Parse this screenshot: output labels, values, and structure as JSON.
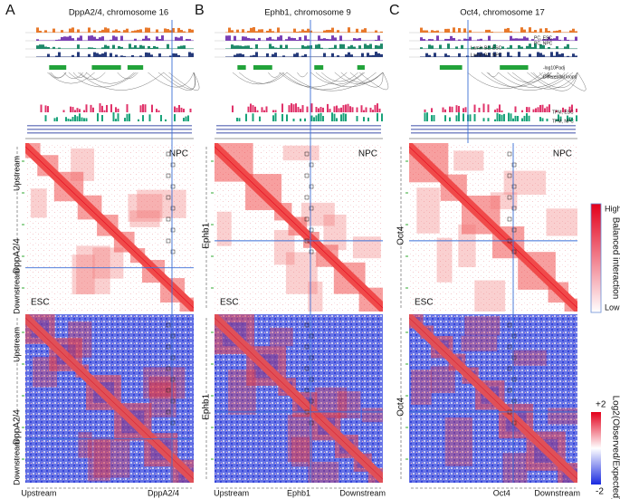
{
  "panels": [
    {
      "letter": "A",
      "title": "DppA2/4, chromosome 16",
      "top_label": "NPC",
      "mid_label": "ESC",
      "left_labels": [
        "Upstream",
        "DppA2/4",
        "Downstream"
      ],
      "bottom_labels": [
        "Upstream",
        "DppA2/4"
      ]
    },
    {
      "letter": "B",
      "title": "Ephb1, chromosome 9",
      "top_label": "NPC",
      "mid_label": "ESC",
      "left_labels": [
        "Ephb1"
      ],
      "bottom_labels": [
        "Upstream",
        "Ephb1",
        "Downstream"
      ]
    },
    {
      "letter": "C",
      "title": "Oct4, chromosome 17",
      "top_label": "NPC",
      "mid_label": "ESC",
      "left_labels": [
        "Oct4"
      ],
      "bottom_labels": [
        "Oct4",
        "Downstream"
      ]
    }
  ],
  "track_labels": [
    "PC, ESC",
    "PC, NPC",
    "Lamin B1, ESC",
    "Lamin B1, NPC",
    "-log10Padj",
    "Differential loops",
    "TPM, ESC",
    "TPM, NPC"
  ],
  "balanced_scale": {
    "title": "Balanced interaction",
    "high": "High",
    "low": "Low"
  },
  "ratio_scale": {
    "title": "Log2(Observed/Expected)",
    "high": "+2",
    "low": "-2"
  }
}
